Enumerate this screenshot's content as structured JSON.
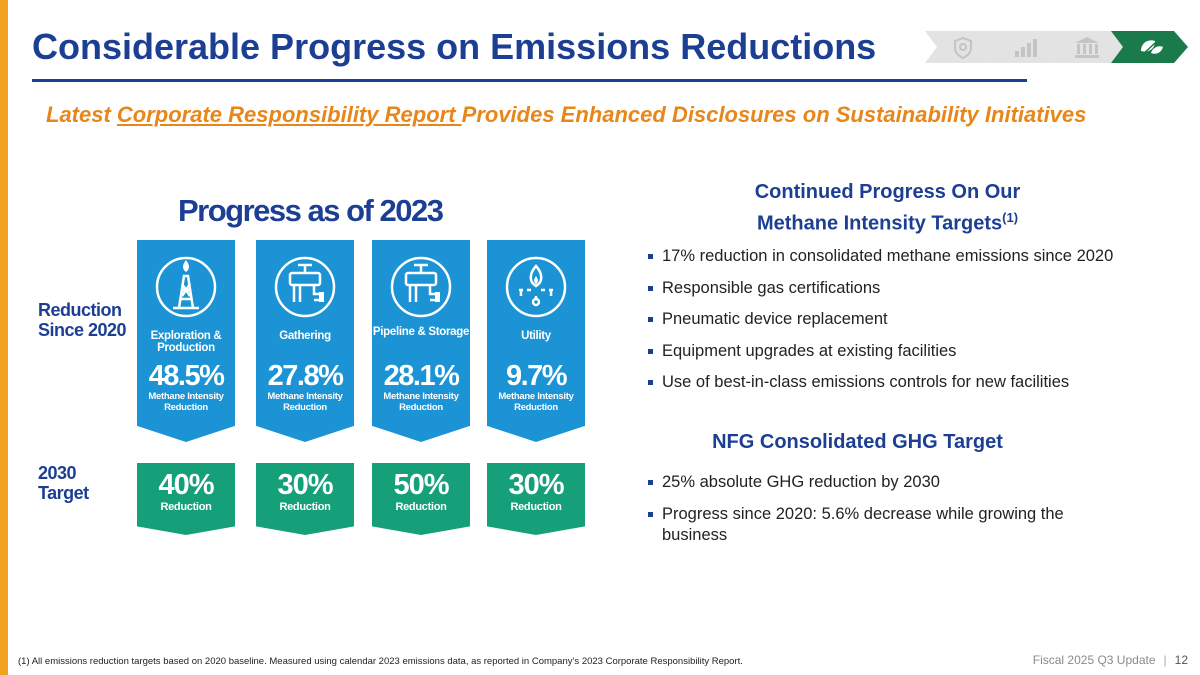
{
  "title": "Considerable Progress on Emissions Reductions",
  "subtitle": {
    "pre": "Latest ",
    "link": "Corporate Responsibility Report ",
    "post": "Provides Enhanced Disclosures on Sustainability Initiatives"
  },
  "nav_icons": [
    "shield-icon",
    "chart-icon",
    "building-icon",
    "leaf-icon"
  ],
  "colors": {
    "brand_blue": "#1c3f94",
    "accent_orange": "#e8861a",
    "banner_blue": "#1b93d4",
    "target_green": "#15a07a",
    "nav_active": "#1a7a4a"
  },
  "progress": {
    "title": "Progress as of 2023",
    "row_reduction": "Reduction Since 2020",
    "row_target": "2030 Target",
    "segments": [
      {
        "name": "Exploration & Production",
        "icon": "drilling-rig-flame-icon",
        "reduction": "48.5%",
        "reduction_caption": "Methane Intensity Reduction",
        "target": "40%",
        "target_caption": "Reduction"
      },
      {
        "name": "Gathering",
        "icon": "pipe-valve-icon",
        "reduction": "27.8%",
        "reduction_caption": "Methane Intensity Reduction",
        "target": "30%",
        "target_caption": "Reduction"
      },
      {
        "name": "Pipeline & Storage",
        "icon": "pipeline-valve-icon",
        "reduction": "28.1%",
        "reduction_caption": "Methane Intensity Reduction",
        "target": "50%",
        "target_caption": "Reduction"
      },
      {
        "name": "Utility",
        "icon": "gas-flame-icon",
        "reduction": "9.7%",
        "reduction_caption": "Methane Intensity Reduction",
        "target": "30%",
        "target_caption": "Reduction"
      }
    ]
  },
  "methane": {
    "heading_line1": "Continued Progress On Our",
    "heading_line2": "Methane Intensity Targets",
    "heading_sup": "(1)",
    "bullets": [
      "17% reduction in consolidated methane emissions since 2020",
      "Responsible gas certifications",
      "Pneumatic device replacement",
      "Equipment upgrades at existing facilities",
      "Use of best-in-class emissions controls for new facilities"
    ]
  },
  "ghg": {
    "heading": "NFG Consolidated GHG Target",
    "bullets": [
      "25% absolute GHG reduction by 2030",
      "Progress since 2020: 5.6% decrease while growing the business"
    ]
  },
  "footnote": "(1)    All emissions reduction targets based on 2020 baseline. Measured using calendar 2023 emissions data, as reported in Company’s 2023 Corporate Responsibility Report.",
  "footer": {
    "label": "Fiscal 2025 Q3 Update",
    "separator": "|",
    "page": "12"
  }
}
